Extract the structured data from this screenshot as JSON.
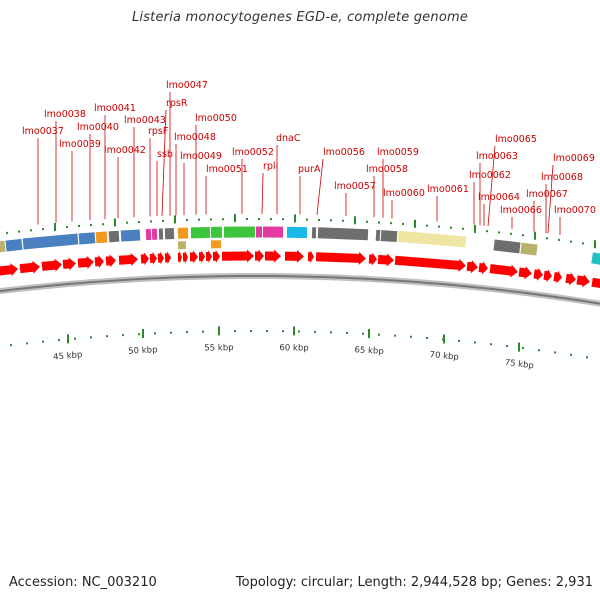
{
  "title": "Listeria monocytogenes EGD-e, complete genome",
  "footer": {
    "accession": "Accession: NC_003210",
    "summary": "Topology: circular; Length: 2,944,528 bp; Genes: 2,931"
  },
  "scale_labels": [
    "45 kbp",
    "50 kbp",
    "55 kbp",
    "60 kbp",
    "65 kbp",
    "70 kbp",
    "75 kbp"
  ],
  "gene_labels": [
    "lmo0037",
    "lmo0038",
    "lmo0039",
    "lmo0040",
    "lmo0041",
    "lmo0042",
    "lmo0043",
    "rpsF",
    "ssb",
    "rpsR",
    "lmo0047",
    "lmo0048",
    "lmo0049",
    "lmo0050",
    "lmo0051",
    "lmo0052",
    "rplI",
    "dnaC",
    "purA",
    "lmo0056",
    "lmo0057",
    "lmo0058",
    "lmo0059",
    "lmo0060",
    "lmo0061",
    "lmo0062",
    "lmo0063",
    "lmo0064",
    "lmo0065",
    "lmo0066",
    "lmo0067",
    "lmo0068",
    "lmo0069",
    "lmo0070"
  ],
  "colors": {
    "label_red": "#cc0000",
    "gene_red": "#ff0000",
    "backbone": "#999999",
    "tick_green": "#2a8a2a",
    "cog_blue": "#4a7fc0",
    "cog_gray": "#6e6e6e",
    "cog_green": "#3cc43c",
    "cog_orange": "#f29a1f",
    "cog_magenta": "#e23aa0",
    "cog_cyan": "#19b8e6",
    "cog_khaki": "#efe6a4",
    "cog_olive": "#b9b36a",
    "cog_teal": "#22c2c2"
  }
}
